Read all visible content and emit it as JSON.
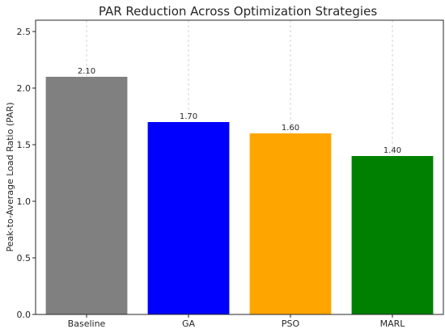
{
  "chart_data": {
    "type": "bar",
    "title": "PAR Reduction Across Optimization Strategies",
    "xlabel": "",
    "ylabel": "Peak-to-Average Load Ratio (PAR)",
    "categories": [
      "Baseline",
      "GA",
      "PSO",
      "MARL"
    ],
    "values": [
      2.1,
      1.7,
      1.6,
      1.4
    ],
    "value_labels": [
      "2.10",
      "1.70",
      "1.60",
      "1.40"
    ],
    "bar_colors": [
      "#808080",
      "#0000ff",
      "#ffa500",
      "#008000"
    ],
    "ylim": [
      0,
      2.6
    ],
    "yticks": [
      0.0,
      0.5,
      1.0,
      1.5,
      2.0,
      2.5
    ],
    "ytick_labels": [
      "0.0",
      "0.5",
      "1.0",
      "1.5",
      "2.0",
      "2.5"
    ],
    "grid": "x-dashed",
    "legend": "none"
  }
}
